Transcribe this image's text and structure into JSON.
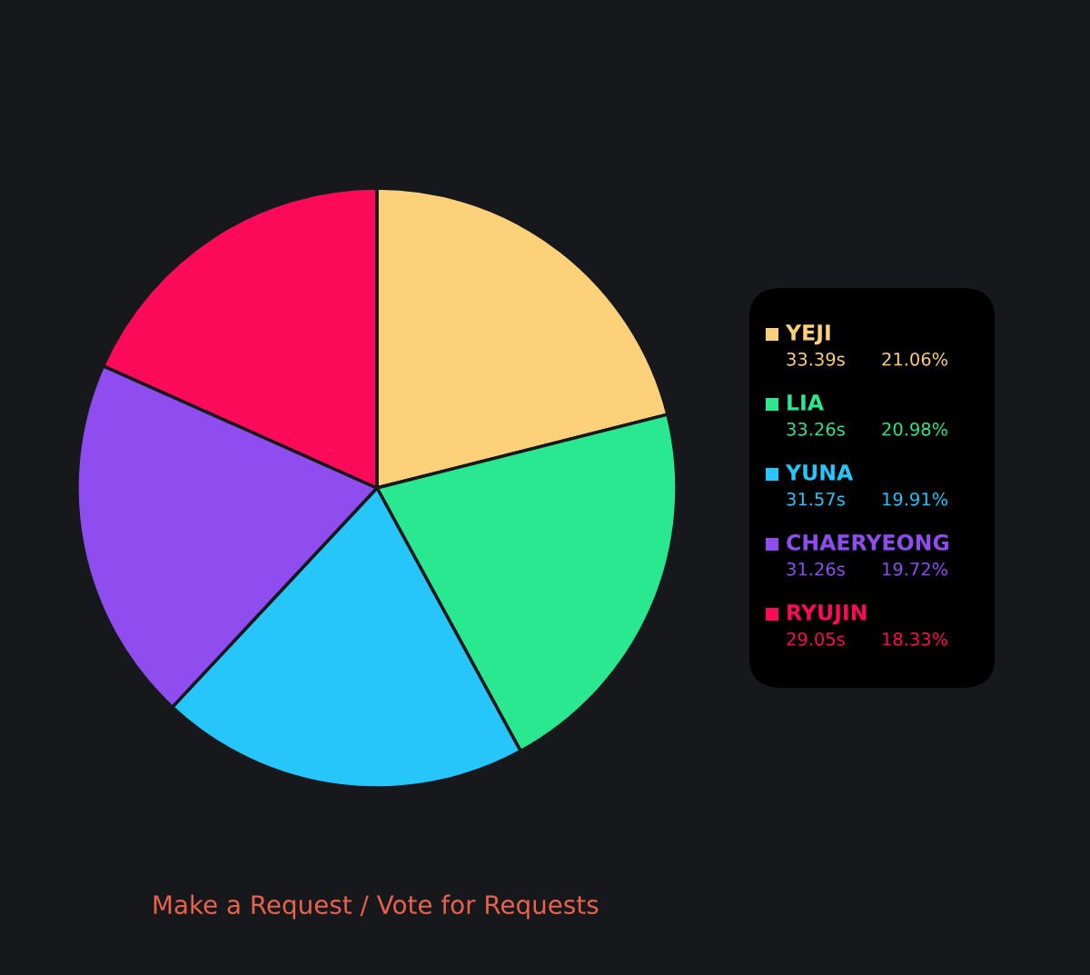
{
  "chart_data": {
    "type": "pie",
    "categories": [
      "YEJI",
      "LIA",
      "YUNA",
      "CHAERYEONG",
      "RYUJIN"
    ],
    "values": [
      33.39,
      33.26,
      31.57,
      31.26,
      29.05
    ],
    "value_labels": [
      "33.39s",
      "33.26s",
      "31.57s",
      "31.26s",
      "29.05s"
    ],
    "colors": [
      "#fdd07a",
      "#2ae890",
      "#26c6fb",
      "#8f4df0",
      "#fd0a5a"
    ],
    "legend": "right",
    "annotations": [
      "21.06%",
      "20.98%",
      "19.91%",
      "19.72%",
      "18.33%",
      "Make a Request / Vote for Requests"
    ]
  }
}
